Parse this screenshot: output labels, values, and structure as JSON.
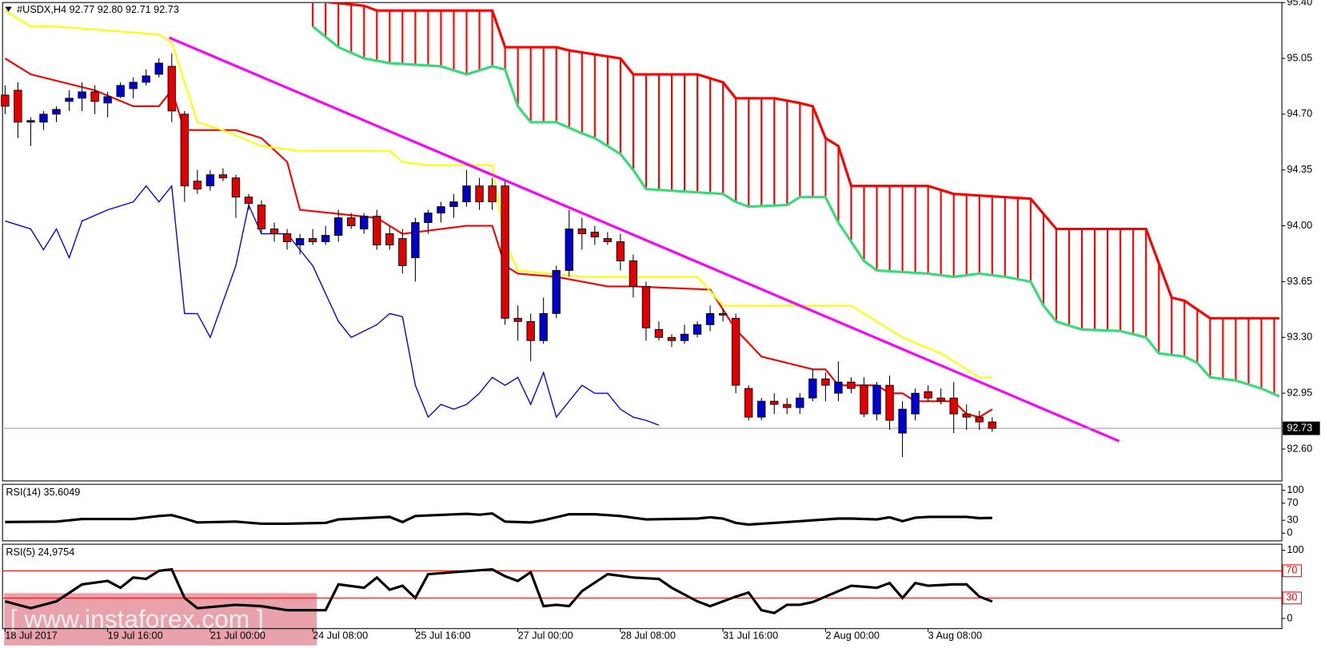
{
  "chart_data": [
    {
      "type": "candlestick",
      "title": "#USDX,H4 92.77 92.80 92.71 92.73",
      "xlim": [
        -0.2,
        99.6
      ],
      "xticks": [
        {
          "value": 0,
          "label": "18 Jul 2017"
        },
        {
          "value": 8,
          "label": "19 Jul 16:00"
        },
        {
          "value": 16,
          "label": "21 Jul 00:00"
        },
        {
          "value": 24,
          "label": "24 Jul 08:00"
        },
        {
          "value": 32,
          "label": "25 Jul 16:00"
        },
        {
          "value": 40,
          "label": "27 Jul 00:00"
        },
        {
          "value": 48,
          "label": "28 Jul 08:00"
        },
        {
          "value": 56,
          "label": "31 Jul 16:00"
        },
        {
          "value": 64,
          "label": "2 Aug 00:00"
        },
        {
          "value": 72,
          "label": "3 Aug 08:00"
        }
      ],
      "ylim": [
        92.4,
        95.4
      ],
      "yticks": [
        {
          "value": 95.4,
          "label": "95.40"
        },
        95.05,
        {
          "value": 94.7,
          "label": "94.70"
        },
        94.35,
        {
          "value": 94,
          "label": "94.00"
        },
        93.65,
        {
          "value": 93.3,
          "label": "93.30"
        },
        92.95,
        {
          "value": 92.6,
          "label": "92.60"
        }
      ],
      "up_color": "#0000cc",
      "down_color": "#e00000",
      "cloud_color": "#ff0000",
      "open": [
        94.82,
        94.85,
        94.65,
        94.65,
        94.7,
        94.78,
        94.8,
        94.84,
        94.77,
        94.81,
        94.86,
        94.9,
        94.95,
        95.0,
        94.7,
        94.28,
        94.25,
        94.32,
        94.3,
        94.18,
        94.13,
        93.98,
        93.95,
        93.88,
        93.92,
        93.9,
        93.94,
        94.05,
        93.98,
        94.06,
        93.95,
        93.92,
        93.8,
        94.02,
        94.08,
        94.12,
        94.15,
        94.25,
        94.25,
        94.25,
        93.42,
        93.4,
        93.28,
        93.45,
        93.72,
        93.98,
        93.96,
        93.92,
        93.9,
        93.78,
        93.62,
        93.35,
        93.3,
        93.28,
        93.32,
        93.38,
        93.45,
        93.42,
        92.98,
        92.8,
        92.9,
        92.88,
        92.86,
        92.92,
        93.04,
        92.95,
        93.02,
        93.0,
        92.82,
        93.0,
        92.7,
        92.82,
        92.96,
        92.92,
        92.92,
        92.82,
        92.8,
        92.77
      ],
      "high": [
        94.88,
        94.9,
        94.68,
        94.72,
        94.75,
        94.85,
        94.9,
        94.88,
        94.84,
        94.9,
        94.93,
        94.98,
        95.05,
        95.08,
        94.72,
        94.35,
        94.35,
        94.36,
        94.32,
        94.2,
        94.16,
        94.02,
        93.98,
        93.95,
        93.98,
        94.0,
        94.1,
        94.08,
        94.08,
        94.1,
        94.0,
        93.98,
        94.05,
        94.1,
        94.15,
        94.2,
        94.35,
        94.3,
        94.3,
        94.28,
        93.5,
        93.45,
        93.55,
        93.75,
        94.1,
        94.05,
        94.0,
        93.96,
        93.95,
        93.82,
        93.65,
        93.4,
        93.32,
        93.38,
        93.4,
        93.5,
        93.48,
        93.45,
        93.0,
        92.92,
        92.95,
        92.92,
        92.95,
        93.1,
        93.08,
        93.15,
        93.05,
        93.05,
        93.02,
        93.06,
        92.9,
        92.98,
        93.0,
        92.98,
        93.02,
        92.88,
        92.84,
        92.8
      ],
      "low": [
        94.7,
        94.55,
        94.5,
        94.6,
        94.65,
        94.72,
        94.72,
        94.7,
        94.68,
        94.8,
        94.8,
        94.88,
        94.93,
        94.65,
        94.15,
        94.2,
        94.22,
        94.28,
        94.05,
        94.1,
        93.95,
        93.9,
        93.85,
        93.82,
        93.88,
        93.88,
        93.9,
        93.98,
        93.95,
        93.85,
        93.85,
        93.7,
        93.65,
        93.95,
        94.02,
        94.05,
        94.12,
        94.1,
        94.1,
        93.38,
        93.28,
        93.15,
        93.26,
        93.42,
        93.68,
        93.85,
        93.88,
        93.88,
        93.72,
        93.55,
        93.28,
        93.28,
        93.24,
        93.26,
        93.3,
        93.34,
        93.4,
        92.95,
        92.78,
        92.78,
        92.82,
        92.82,
        92.82,
        92.9,
        92.9,
        92.9,
        92.95,
        92.8,
        92.78,
        92.72,
        92.55,
        92.78,
        92.9,
        92.88,
        92.7,
        92.72,
        92.72,
        92.71
      ],
      "close": [
        94.75,
        94.65,
        94.66,
        94.7,
        94.73,
        94.8,
        94.84,
        94.78,
        94.81,
        94.88,
        94.9,
        94.94,
        95.02,
        94.72,
        94.25,
        94.23,
        94.32,
        94.3,
        94.18,
        94.14,
        93.98,
        93.95,
        93.9,
        93.92,
        93.9,
        93.94,
        94.05,
        94.0,
        94.06,
        93.88,
        93.88,
        93.75,
        94.02,
        94.08,
        94.12,
        94.15,
        94.25,
        94.15,
        94.15,
        93.42,
        93.4,
        93.28,
        93.45,
        93.72,
        93.98,
        93.95,
        93.93,
        93.9,
        93.78,
        93.62,
        93.36,
        93.3,
        93.28,
        93.32,
        93.38,
        93.45,
        93.44,
        93.0,
        92.8,
        92.9,
        92.88,
        92.86,
        92.92,
        93.04,
        93.0,
        93.02,
        92.98,
        92.82,
        93.0,
        92.78,
        92.85,
        92.95,
        92.92,
        92.9,
        92.82,
        92.8,
        92.77,
        92.73
      ],
      "series": [
        {
          "color": "#ff0000",
          "x": [
            0,
            2,
            7,
            10,
            12,
            13,
            14,
            18,
            20,
            22,
            23,
            29,
            31,
            36,
            38,
            39,
            40,
            43,
            47,
            49,
            55,
            57,
            59,
            63,
            64,
            65,
            68,
            69,
            70,
            71,
            74,
            75,
            76,
            77
          ],
          "values": [
            95.05,
            94.95,
            94.85,
            94.75,
            94.75,
            94.85,
            94.6,
            94.6,
            94.55,
            94.4,
            94.1,
            94.05,
            93.95,
            94.0,
            94.0,
            93.75,
            93.7,
            93.68,
            93.62,
            93.62,
            93.6,
            93.35,
            93.18,
            93.1,
            93.1,
            93.0,
            93.0,
            92.95,
            92.95,
            92.9,
            92.9,
            92.82,
            92.8,
            92.85
          ]
        },
        {
          "color": "#ffff00",
          "x": [
            0,
            2,
            4,
            12,
            13,
            15,
            17,
            20,
            23,
            30,
            31,
            33,
            38,
            39,
            40,
            45,
            54,
            56,
            66,
            70,
            73,
            76,
            77
          ],
          "values": [
            95.35,
            95.25,
            95.25,
            95.2,
            95.15,
            94.65,
            94.6,
            94.5,
            94.47,
            94.47,
            94.4,
            94.38,
            94.38,
            93.9,
            93.72,
            93.68,
            93.68,
            93.5,
            93.5,
            93.3,
            93.2,
            93.05,
            93.05
          ]
        },
        {
          "color": "#0000ff",
          "x": [
            0,
            2,
            3,
            4,
            5,
            6,
            8,
            10,
            11,
            12,
            13,
            14,
            15,
            16,
            18,
            19,
            20,
            22,
            24,
            26,
            27,
            29,
            30,
            31,
            32,
            33,
            34,
            35,
            36,
            37,
            38,
            39,
            40,
            41,
            42,
            43,
            44,
            45,
            46,
            47,
            48,
            49,
            50,
            51
          ],
          "values": [
            94.03,
            93.98,
            93.85,
            93.98,
            93.8,
            94.03,
            94.1,
            94.15,
            94.25,
            94.15,
            94.25,
            93.45,
            93.45,
            93.3,
            93.75,
            94.13,
            93.95,
            93.95,
            93.75,
            93.4,
            93.3,
            93.38,
            93.45,
            93.43,
            93.0,
            92.8,
            92.88,
            92.85,
            92.88,
            92.95,
            93.05,
            93.0,
            93.05,
            92.88,
            93.08,
            92.8,
            92.9,
            93.0,
            92.95,
            92.95,
            92.85,
            92.8,
            92.78,
            92.75
          ]
        },
        {
          "color": "#ff0000",
          "x": [
            23,
            28,
            29,
            38,
            39,
            43,
            44,
            48,
            49,
            54,
            56,
            57,
            60,
            62,
            63,
            64,
            65,
            66,
            69,
            72,
            74,
            80,
            82,
            89,
            91,
            92,
            94,
            99.4
          ],
          "values": [
            95.42,
            95.38,
            95.35,
            95.35,
            95.12,
            95.12,
            95.1,
            95.05,
            94.95,
            94.95,
            94.9,
            94.8,
            94.8,
            94.77,
            94.75,
            94.55,
            94.5,
            94.25,
            94.25,
            94.25,
            94.2,
            94.17,
            93.98,
            93.98,
            93.55,
            93.53,
            93.42,
            93.42
          ]
        },
        {
          "color": "#33dd77",
          "x": [
            24,
            26,
            28,
            30,
            34,
            36,
            38,
            39,
            40,
            41,
            43,
            45,
            46,
            48,
            49,
            50,
            54,
            56,
            57,
            58,
            61,
            62,
            64,
            65,
            66,
            67,
            68,
            72,
            74,
            76,
            78,
            80,
            81,
            82,
            84,
            87,
            89,
            90,
            92,
            93,
            94,
            96,
            98,
            99.4
          ],
          "values": [
            95.25,
            95.12,
            95.05,
            95.02,
            95.0,
            94.95,
            95.0,
            94.98,
            94.75,
            94.65,
            94.65,
            94.58,
            94.55,
            94.45,
            94.35,
            94.23,
            94.21,
            94.2,
            94.15,
            94.12,
            94.13,
            94.18,
            94.18,
            94.02,
            93.9,
            93.78,
            93.72,
            93.7,
            93.68,
            93.7,
            93.68,
            93.65,
            93.5,
            93.4,
            93.35,
            93.34,
            93.3,
            93.2,
            93.18,
            93.14,
            93.05,
            93.03,
            92.98,
            92.93
          ]
        },
        {
          "color": "#ff00ff",
          "x": [
            12.8,
            86.9
          ],
          "values": [
            95.18,
            92.65
          ]
        }
      ],
      "current_price": 92.73,
      "watermark": "[ www.instaforex.com ]"
    },
    {
      "type": "line",
      "title": "RSI(14) 35.6049",
      "color": "#000000",
      "ylim": [
        -18,
        114
      ],
      "yticks": [
        100,
        70,
        30,
        0
      ],
      "x": [
        0,
        4,
        6,
        10,
        12,
        13,
        14,
        15,
        18,
        20,
        22,
        25,
        26,
        30,
        31,
        32,
        36,
        37,
        38,
        39,
        41,
        42,
        44,
        46,
        48,
        50,
        54,
        55,
        56,
        57,
        58,
        60,
        62,
        65,
        66,
        68,
        69,
        70,
        71,
        72,
        75,
        76,
        77
      ],
      "values": [
        26,
        27,
        33,
        33,
        40,
        42,
        34,
        25,
        27,
        22,
        22,
        24,
        32,
        38,
        26,
        40,
        45,
        43,
        46,
        27,
        25,
        30,
        44,
        44,
        40,
        32,
        34,
        37,
        34,
        24,
        20,
        24,
        28,
        34,
        34,
        32,
        37,
        28,
        36,
        38,
        38,
        35,
        35.6
      ]
    },
    {
      "type": "line",
      "title": "RSI(5) 24,9754",
      "color": "#000000",
      "ylim": [
        -15,
        109
      ],
      "yticks": [
        100,
        0
      ],
      "levels": [
        70,
        30
      ],
      "level_color": "#ff0000",
      "x": [
        0,
        2,
        4,
        6,
        8,
        9,
        10,
        11,
        12,
        13,
        14,
        15,
        18,
        20,
        22,
        25,
        26,
        28,
        29,
        30,
        31,
        32,
        33,
        35,
        38,
        39,
        40,
        41,
        42,
        43,
        44,
        45,
        47,
        49,
        51,
        52,
        54,
        55,
        57,
        58,
        59,
        60,
        61,
        62,
        63,
        64,
        66,
        68,
        69,
        70,
        71,
        72,
        74,
        75,
        76,
        77
      ],
      "values": [
        25,
        15,
        25,
        50,
        55,
        45,
        60,
        58,
        70,
        72,
        30,
        15,
        20,
        18,
        12,
        12,
        50,
        45,
        60,
        42,
        48,
        30,
        65,
        68,
        72,
        62,
        55,
        68,
        18,
        20,
        18,
        40,
        65,
        60,
        58,
        45,
        25,
        18,
        32,
        38,
        12,
        8,
        20,
        20,
        24,
        32,
        48,
        45,
        52,
        30,
        52,
        48,
        50,
        50,
        32,
        24.9754
      ]
    }
  ]
}
